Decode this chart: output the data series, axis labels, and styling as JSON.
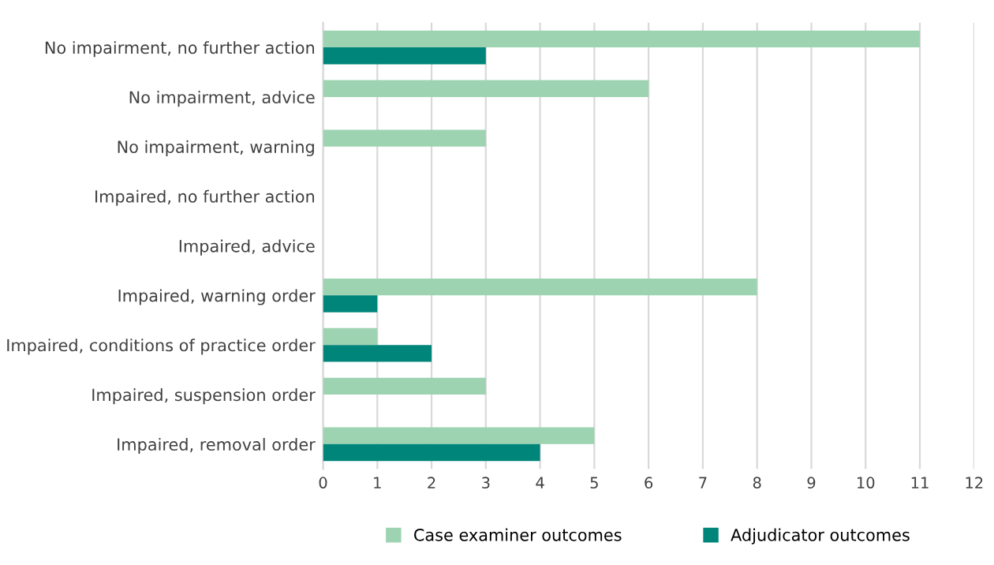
{
  "chart_data": {
    "type": "bar",
    "orientation": "horizontal",
    "categories": [
      "No impairment, no further action",
      "No impairment, advice",
      "No impairment, warning",
      "Impaired, no further action",
      "Impaired, advice",
      "Impaired, warning order",
      "Impaired, conditions of practice order",
      "Impaired, suspension order",
      "Impaired, removal order"
    ],
    "series": [
      {
        "name": "Case examiner outcomes",
        "color": "#9dd3b1",
        "values": [
          11,
          6,
          3,
          0,
          0,
          8,
          1,
          3,
          5
        ]
      },
      {
        "name": "Adjudicator outcomes",
        "color": "#00857a",
        "values": [
          3,
          0,
          0,
          0,
          0,
          1,
          2,
          0,
          4
        ]
      }
    ],
    "xlim": [
      0,
      12
    ],
    "xticks": [
      0,
      1,
      2,
      3,
      4,
      5,
      6,
      7,
      8,
      9,
      10,
      11,
      12
    ],
    "grid": "x",
    "legend": "bottom"
  }
}
